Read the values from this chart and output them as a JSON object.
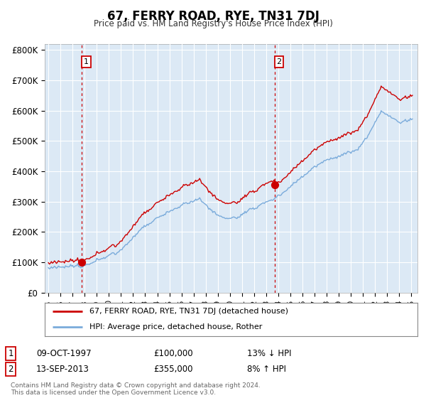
{
  "title": "67, FERRY ROAD, RYE, TN31 7DJ",
  "subtitle": "Price paid vs. HM Land Registry's House Price Index (HPI)",
  "ylabel_ticks": [
    "£0",
    "£100K",
    "£200K",
    "£300K",
    "£400K",
    "£500K",
    "£600K",
    "£700K",
    "£800K"
  ],
  "ylim": [
    0,
    820000
  ],
  "xlim_start": 1994.7,
  "xlim_end": 2025.5,
  "sale1_x": 1997.77,
  "sale1_y": 100000,
  "sale1_label": "1",
  "sale2_x": 2013.71,
  "sale2_y": 355000,
  "sale2_label": "2",
  "legend_line1": "67, FERRY ROAD, RYE, TN31 7DJ (detached house)",
  "legend_line2": "HPI: Average price, detached house, Rother",
  "table_row1": [
    "1",
    "09-OCT-1997",
    "£100,000",
    "13% ↓ HPI"
  ],
  "table_row2": [
    "2",
    "13-SEP-2013",
    "£355,000",
    "8% ↑ HPI"
  ],
  "footer": "Contains HM Land Registry data © Crown copyright and database right 2024.\nThis data is licensed under the Open Government Licence v3.0.",
  "sale_color": "#cc0000",
  "hpi_color": "#7aabdb",
  "plot_bg_color": "#dce9f5",
  "background_color": "#ffffff",
  "grid_color": "#ffffff"
}
